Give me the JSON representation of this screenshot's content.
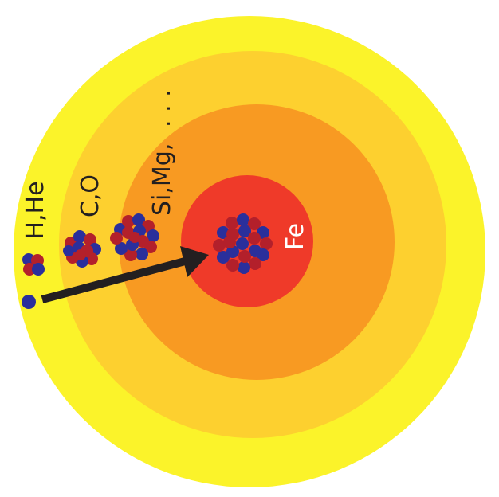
{
  "colors": {
    "background": "#ffffff",
    "shell_outer": "#fbf32a",
    "shell_second": "#fdd02f",
    "shell_third": "#f89a22",
    "core": "#ef3a29",
    "nucleon_red": "#b3202b",
    "nucleon_blue": "#2a2f9c",
    "arrow": "#231f20",
    "label_dark": "#231f20",
    "label_core": "#ffffff"
  },
  "layers": [
    {
      "id": "outer",
      "elements": "H,He",
      "color_key": "shell_outer"
    },
    {
      "id": "second",
      "elements": "C,O",
      "color_key": "shell_second"
    },
    {
      "id": "third",
      "elements": "Si,Mg, . . .",
      "color_key": "shell_third"
    },
    {
      "id": "core",
      "elements": "Fe",
      "color_key": "core"
    }
  ],
  "labels": {
    "h_he": "H,He",
    "c_o": "C,O",
    "si_mg": "Si,Mg,",
    "si_mg_ellipsis": ". . .",
    "fe": "Fe"
  },
  "icons": {
    "nucleus": "nucleus-icon",
    "proton": "proton-icon",
    "arrow": "arrow-icon"
  }
}
